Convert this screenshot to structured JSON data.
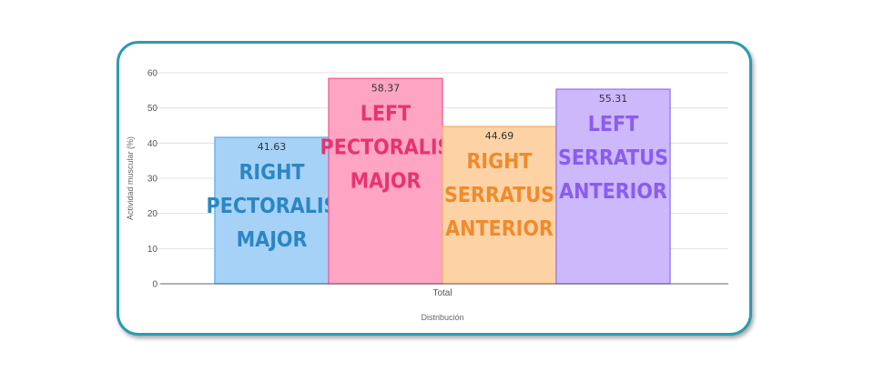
{
  "chart_data": {
    "type": "bar",
    "categories": [
      "Total"
    ],
    "series": [
      {
        "label_lines": [
          "RIGHT",
          "PECTORALIS",
          "MAJOR"
        ],
        "value": 41.63,
        "value_label": "41.63",
        "fill": "#a6d2f7",
        "stroke": "#6fb3ee",
        "text_color": "#2b86c5"
      },
      {
        "label_lines": [
          "LEFT",
          "PECTORALIS",
          "MAJOR"
        ],
        "value": 58.37,
        "value_label": "58.37",
        "fill": "#fda5c3",
        "stroke": "#f06b98",
        "text_color": "#e8336f"
      },
      {
        "label_lines": [
          "RIGHT",
          "SERRATUS",
          "ANTERIOR"
        ],
        "value": 44.69,
        "value_label": "44.69",
        "fill": "#fdd3a6",
        "stroke": "#f6b275",
        "text_color": "#ef8b2c"
      },
      {
        "label_lines": [
          "LEFT",
          "SERRATUS",
          "ANTERIOR"
        ],
        "value": 55.31,
        "value_label": "55.31",
        "fill": "#ccb8fb",
        "stroke": "#a082f0",
        "text_color": "#8b5cf0"
      }
    ],
    "ylabel": "Actividad muscular (%)",
    "xlabel": "Distribución",
    "ylim": [
      0,
      60
    ],
    "yticks": [
      "0",
      "10",
      "20",
      "30",
      "40",
      "50",
      "60"
    ],
    "grid": true,
    "colors": {
      "frame": "#2a9bb0",
      "grid": "#e0e0e0",
      "axis": "#666666"
    }
  }
}
